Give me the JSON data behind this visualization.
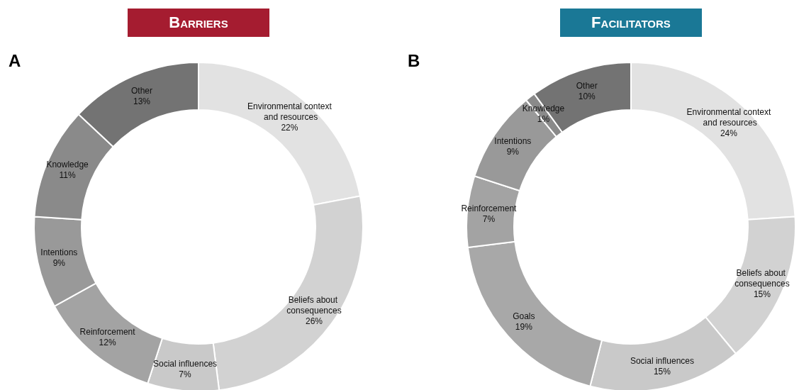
{
  "chart_data": [
    {
      "type": "donut",
      "title": "Barriers",
      "annotations": [
        "A"
      ],
      "categories": [
        "Environmental context and resources",
        "Beliefs about consequences",
        "Social influences",
        "Reinforcement",
        "Intentions",
        "Knowledge",
        "Other"
      ],
      "values": [
        22,
        26,
        7,
        12,
        9,
        11,
        13
      ],
      "value_labels": [
        "22%",
        "26%",
        "7%",
        "12%",
        "9%",
        "11%",
        "13%"
      ],
      "colors": [
        "#e2e2e2",
        "#d2d2d2",
        "#c9c9c9",
        "#a3a3a3",
        "#999999",
        "#8a8a8a",
        "#737373"
      ]
    },
    {
      "type": "donut",
      "title": "Facilitators",
      "annotations": [
        "B"
      ],
      "categories": [
        "Environmental context and resources",
        "Beliefs about consequences",
        "Social influences",
        "Goals",
        "Reinforcement",
        "Intentions",
        "Knowledge",
        "Other"
      ],
      "values": [
        24,
        15,
        15,
        19,
        7,
        9,
        1,
        10
      ],
      "value_labels": [
        "24%",
        "15%",
        "15%",
        "19%",
        "7%",
        "9%",
        "1%",
        "10%"
      ],
      "colors": [
        "#e2e2e2",
        "#d2d2d2",
        "#c9c9c9",
        "#a8a8a8",
        "#a3a3a3",
        "#999999",
        "#8a8a8a",
        "#737373"
      ]
    }
  ]
}
